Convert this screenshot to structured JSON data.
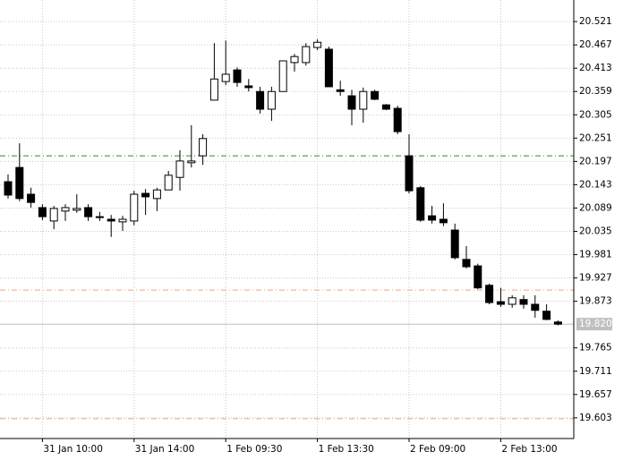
{
  "chart_data": {
    "type": "candlestick",
    "categories": [
      null,
      null,
      null,
      "31 Jan 10:00",
      null,
      null,
      null,
      null,
      null,
      null,
      null,
      "31 Jan 14:00",
      null,
      null,
      null,
      null,
      null,
      null,
      null,
      "1 Feb 09:30",
      null,
      null,
      null,
      null,
      null,
      null,
      null,
      "1 Feb 13:30",
      null,
      null,
      null,
      null,
      null,
      null,
      null,
      "2 Feb 09:00",
      null,
      null,
      null,
      null,
      null,
      null,
      null,
      "2 Feb 13:00",
      null,
      null,
      null,
      null,
      null
    ],
    "open": [
      20.15,
      20.183,
      20.121,
      20.09,
      20.059,
      20.082,
      20.084,
      20.09,
      20.069,
      20.063,
      20.057,
      20.059,
      20.123,
      20.111,
      20.131,
      20.16,
      20.194,
      20.21,
      20.339,
      20.382,
      20.409,
      20.372,
      20.359,
      20.318,
      20.359,
      20.426,
      20.426,
      20.461,
      20.457,
      20.363,
      20.349,
      20.318,
      20.359,
      20.328,
      20.32,
      20.21,
      20.136,
      20.071,
      20.063,
      20.038,
      19.97,
      19.955,
      19.91,
      19.872,
      19.866,
      19.877,
      19.866,
      19.85,
      19.825
    ],
    "high": [
      20.167,
      20.239,
      20.136,
      20.098,
      20.094,
      20.098,
      20.121,
      20.098,
      20.08,
      20.073,
      20.071,
      20.129,
      20.133,
      20.136,
      20.175,
      20.223,
      20.281,
      20.26,
      20.471,
      20.477,
      20.415,
      20.388,
      20.37,
      20.37,
      20.43,
      20.446,
      20.471,
      20.48,
      20.463,
      20.384,
      20.363,
      20.368,
      20.363,
      20.33,
      20.326,
      20.26,
      20.14,
      20.094,
      20.1,
      20.053,
      20.001,
      19.96,
      19.914,
      19.904,
      19.887,
      19.887,
      19.887,
      19.866,
      19.829
    ],
    "low": [
      20.111,
      20.105,
      20.09,
      20.061,
      20.04,
      20.059,
      20.078,
      20.059,
      20.059,
      20.022,
      20.036,
      20.049,
      20.073,
      20.082,
      20.131,
      20.129,
      20.183,
      20.189,
      20.339,
      20.374,
      20.37,
      20.359,
      20.308,
      20.291,
      20.359,
      20.405,
      20.419,
      20.455,
      20.37,
      20.349,
      20.281,
      20.287,
      20.339,
      20.316,
      20.26,
      20.123,
      20.057,
      20.053,
      20.047,
      19.97,
      19.949,
      19.901,
      19.866,
      19.86,
      19.858,
      19.856,
      19.835,
      19.829,
      19.817
    ],
    "close": [
      20.119,
      20.111,
      20.102,
      20.069,
      20.088,
      20.09,
      20.088,
      20.069,
      20.067,
      20.059,
      20.063,
      20.121,
      20.115,
      20.131,
      20.165,
      20.198,
      20.198,
      20.25,
      20.388,
      20.399,
      20.38,
      20.368,
      20.318,
      20.359,
      20.43,
      20.44,
      20.463,
      20.473,
      20.37,
      20.359,
      20.318,
      20.359,
      20.341,
      20.318,
      20.266,
      20.129,
      20.061,
      20.061,
      20.055,
      19.974,
      19.953,
      19.904,
      19.87,
      19.866,
      19.881,
      19.866,
      19.852,
      19.831,
      19.82
    ],
    "up_color": "#ffffff",
    "down_color": "#000000",
    "ylim": [
      19.555,
      20.571
    ],
    "yticks": [
      19.603,
      19.657,
      19.711,
      19.765,
      19.873,
      19.927,
      19.981,
      20.035,
      20.089,
      20.143,
      20.197,
      20.251,
      20.305,
      20.359,
      20.413,
      20.467,
      20.521
    ],
    "levels": [
      {
        "value": 20.21,
        "color": "#2e8b2e"
      },
      {
        "value": 19.899,
        "color": "#f4a582"
      },
      {
        "value": 19.601,
        "color": "#f4a582"
      }
    ],
    "current_price": {
      "value": 19.82,
      "label": "19.820",
      "color": "#c0c0c0"
    },
    "grid": true
  }
}
